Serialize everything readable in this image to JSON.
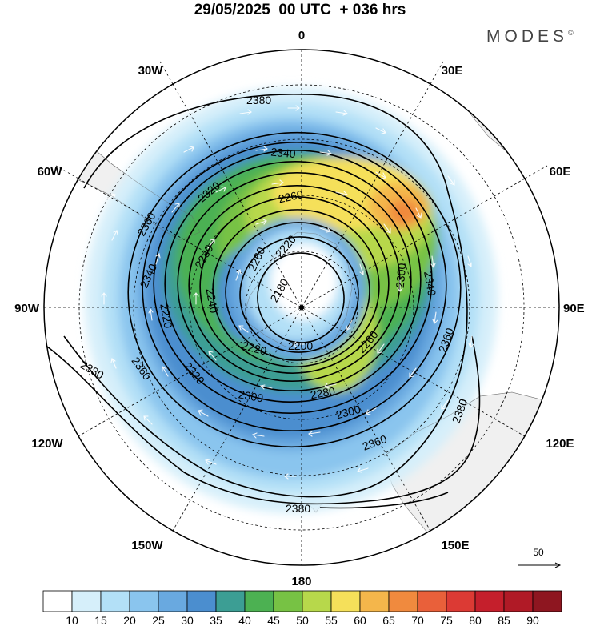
{
  "header": {
    "title": "29/05/2025  00 UTC  + 036 hrs",
    "brand": "MODES"
  },
  "longitude_labels": {
    "lon_0": "0",
    "lon_30e": "30E",
    "lon_60e": "60E",
    "lon_90e": "90E",
    "lon_120e": "120E",
    "lon_150e": "150E",
    "lon_180": "180",
    "lon_150w": "150W",
    "lon_120w": "120W",
    "lon_90w": "90W",
    "lon_60w": "60W",
    "lon_30w": "30W"
  },
  "contour_labels": [
    "2380",
    "2340",
    "2320",
    "2260",
    "2220",
    "2360",
    "2340",
    "2280",
    "2260",
    "2240",
    "2180",
    "2220",
    "2200",
    "2260",
    "2300",
    "2340",
    "2300",
    "2220",
    "2320",
    "2360",
    "2280",
    "2300",
    "2360",
    "2380",
    "2360",
    "2380",
    "2380"
  ],
  "wind_reference": {
    "value": "50"
  },
  "colorbar": {
    "levels": [
      "10",
      "15",
      "20",
      "25",
      "30",
      "35",
      "40",
      "45",
      "50",
      "55",
      "60",
      "65",
      "70",
      "75",
      "80",
      "85",
      "90"
    ],
    "colors": [
      "#ffffff",
      "#d6effa",
      "#b3e0f7",
      "#8ac5ee",
      "#69a9e0",
      "#4b8ecf",
      "#3c9e94",
      "#4cb152",
      "#77c244",
      "#b7d84b",
      "#f5e05a",
      "#f4b64b",
      "#f08a3e",
      "#e9603a",
      "#dc3a34",
      "#c51f2c",
      "#b01a26",
      "#8e1620"
    ]
  },
  "colors": {
    "land": "#f0f0f0",
    "contour": "#000000",
    "vectors": "#ffffff"
  }
}
